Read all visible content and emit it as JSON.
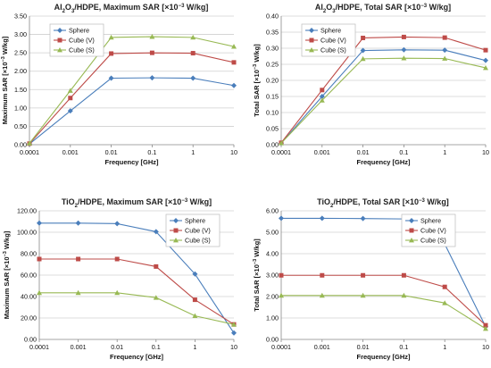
{
  "chart_data": [
    {
      "type": "line",
      "title_parts": [
        "Al",
        "2",
        "O",
        "3",
        "/HDPE, Maximum SAR [×10",
        "−3",
        " W/kg]"
      ],
      "xlabel": "Frequency [GHz]",
      "ylabel_parts": [
        "Maximum SAR [×10",
        "−3",
        " W/kg]"
      ],
      "x": [
        "0.0001",
        "0.001",
        "0.01",
        "0.1",
        "1",
        "10"
      ],
      "y_ticks": [
        "0.00",
        "0.50",
        "1.00",
        "1.50",
        "2.00",
        "2.50",
        "3.00",
        "3.50"
      ],
      "ylim": [
        0,
        3.5
      ],
      "grid": true,
      "legend_position": "top-left",
      "series": [
        {
          "name": "Sphere",
          "values": [
            0.02,
            0.92,
            1.81,
            1.82,
            1.81,
            1.61
          ]
        },
        {
          "name": "Cube (V)",
          "values": [
            0.03,
            1.27,
            2.48,
            2.5,
            2.49,
            2.24
          ]
        },
        {
          "name": "Cube (S)",
          "values": [
            0.04,
            1.47,
            2.92,
            2.94,
            2.92,
            2.67
          ]
        }
      ]
    },
    {
      "type": "line",
      "title_parts": [
        "Al",
        "2",
        "O",
        "3",
        "/HDPE, Total SAR [×10",
        "−3",
        " W/kg]"
      ],
      "xlabel": "Frequency [GHz]",
      "ylabel_parts": [
        "Total SAR [×10",
        "−3",
        " W/kg]"
      ],
      "x": [
        "0.0001",
        "0.001",
        "0.01",
        "0.1",
        "1",
        "10"
      ],
      "y_ticks": [
        "0.00",
        "0.05",
        "0.10",
        "0.15",
        "0.20",
        "0.25",
        "0.30",
        "0.35",
        "0.40"
      ],
      "ylim": [
        0,
        0.4
      ],
      "grid": true,
      "legend_position": "top-left",
      "series": [
        {
          "name": "Sphere",
          "values": [
            0.005,
            0.15,
            0.293,
            0.295,
            0.294,
            0.262
          ]
        },
        {
          "name": "Cube (V)",
          "values": [
            0.006,
            0.17,
            0.332,
            0.335,
            0.333,
            0.294
          ]
        },
        {
          "name": "Cube (S)",
          "values": [
            0.005,
            0.138,
            0.267,
            0.269,
            0.268,
            0.239
          ]
        }
      ]
    },
    {
      "type": "line",
      "title_parts": [
        "TiO",
        "2",
        "",
        "",
        "/HDPE, Maximum SAR [×10",
        "−3",
        " W/kg]"
      ],
      "xlabel": "Frequency [GHz]",
      "ylabel_parts": [
        "Maximum SAR [×10",
        "−3",
        " W/kg]"
      ],
      "x": [
        "0.0001",
        "0.001",
        "0.01",
        "0.1",
        "1",
        "10"
      ],
      "y_ticks": [
        "0.00",
        "20.00",
        "40.00",
        "60.00",
        "80.00",
        "100.00",
        "120.00"
      ],
      "ylim": [
        0,
        120
      ],
      "grid": true,
      "legend_position": "top-right",
      "series": [
        {
          "name": "Sphere",
          "values": [
            108.5,
            108.5,
            108.0,
            100.5,
            61.0,
            6.0
          ]
        },
        {
          "name": "Cube (V)",
          "values": [
            75.0,
            75.0,
            75.0,
            68.0,
            37.0,
            14.0
          ]
        },
        {
          "name": "Cube (S)",
          "values": [
            43.5,
            43.5,
            43.5,
            39.0,
            22.0,
            14.0
          ]
        }
      ]
    },
    {
      "type": "line",
      "title_parts": [
        "TiO",
        "2",
        "",
        "",
        "/HDPE, Total SAR [×10",
        "−3",
        " W/kg]"
      ],
      "xlabel": "Frequency [GHz]",
      "ylabel_parts": [
        "Total SAR [×10",
        "−3",
        " W/kg]"
      ],
      "x": [
        "0.0001",
        "0.001",
        "0.01",
        "0.1",
        "1",
        "10"
      ],
      "y_ticks": [
        "0.00",
        "1.00",
        "2.00",
        "3.00",
        "4.00",
        "5.00",
        "6.00"
      ],
      "ylim": [
        0,
        6
      ],
      "grid": true,
      "legend_position": "top-right",
      "series": [
        {
          "name": "Sphere",
          "values": [
            5.65,
            5.65,
            5.64,
            5.62,
            4.45,
            0.6
          ]
        },
        {
          "name": "Cube (V)",
          "values": [
            2.99,
            2.99,
            2.99,
            2.99,
            2.45,
            0.66
          ]
        },
        {
          "name": "Cube (S)",
          "values": [
            2.05,
            2.05,
            2.05,
            2.05,
            1.7,
            0.5
          ]
        }
      ]
    }
  ],
  "colors": {
    "Sphere": "#4a7ebb",
    "Cube (V)": "#be4b48",
    "Cube (S)": "#98b954",
    "grid": "#d0d0d0",
    "axis": "#888888"
  },
  "markers": {
    "Sphere": "diamond",
    "Cube (V)": "square",
    "Cube (S)": "triangle"
  }
}
